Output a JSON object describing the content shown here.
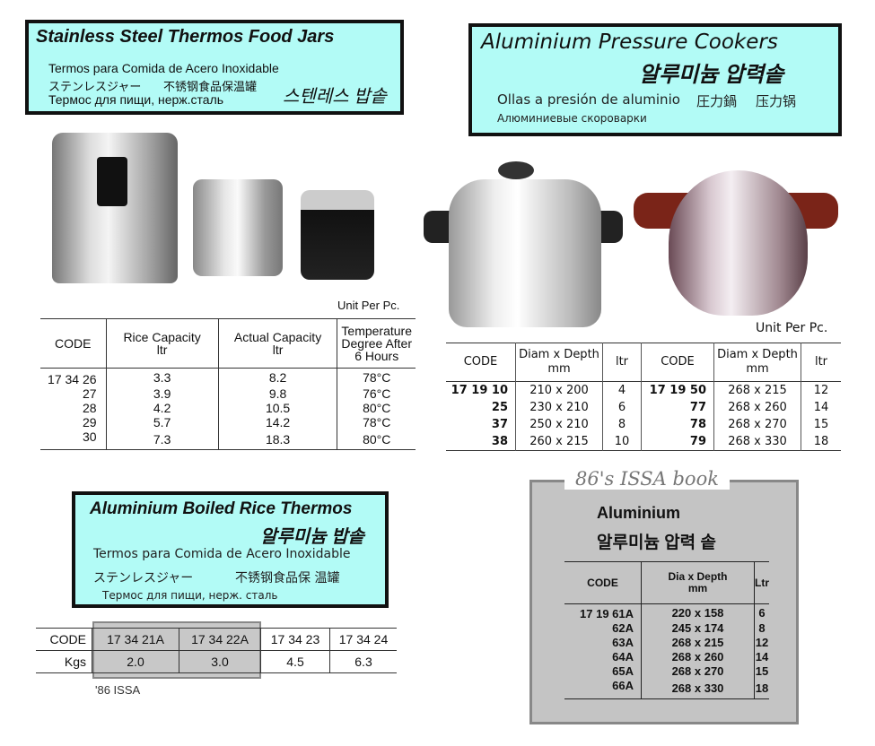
{
  "thermos_jars": {
    "title": "Stainless Steel Thermos Food Jars",
    "spanish": "Termos para Comida de Acero Inoxidable",
    "japanese": "ステンレスジャー",
    "chinese": "不锈钢食品保温罐",
    "russian": "Термос для пищи, нерж.сталь",
    "korean": "스텐레스 밥솥",
    "unit_note": "Unit Per Pc.",
    "headers": [
      "CODE",
      "Rice Capacity ltr",
      "Actual Capacity ltr",
      "Temperature Degree After 6 Hours"
    ],
    "rows": [
      [
        "17 34 26",
        "3.3",
        "8.2",
        "78°C"
      ],
      [
        "27",
        "3.9",
        "9.8",
        "76°C"
      ],
      [
        "28",
        "4.2",
        "10.5",
        "80°C"
      ],
      [
        "29",
        "5.7",
        "14.2",
        "78°C"
      ],
      [
        "30",
        "7.3",
        "18.3",
        "80°C"
      ]
    ]
  },
  "pressure_cookers": {
    "title": "Aluminium Pressure Cookers",
    "korean": "알루미늄 압력솥",
    "spanish": "Ollas a presión de aluminio",
    "japanese": "圧力鍋",
    "chinese": "压力锅",
    "russian": "Алюминиевые скороварки",
    "unit_note": "Unit Per Pc.",
    "headers": [
      "CODE",
      "Diam x Depth mm",
      "ltr",
      "CODE",
      "Diam x Depth mm",
      "ltr"
    ],
    "rows": [
      [
        "17 19 10",
        "210 x 200",
        "4",
        "17 19 50",
        "268 x 215",
        "12"
      ],
      [
        "25",
        "230 x 210",
        "6",
        "77",
        "268 x 260",
        "14"
      ],
      [
        "37",
        "250 x 210",
        "8",
        "78",
        "268 x 270",
        "15"
      ],
      [
        "38",
        "260 x 215",
        "10",
        "79",
        "268 x 330",
        "18"
      ]
    ]
  },
  "rice_thermos": {
    "title": "Aluminium Boiled Rice Thermos",
    "korean": "알루미늄 밥솥",
    "spanish": "Termos para Comida de Acero Inoxidable",
    "japanese": "ステンレスジャー",
    "chinese": "不锈钢食品保 温罐",
    "russian": "Термос для пищи, нерж. сталь",
    "row_labels": [
      "CODE",
      "Kgs"
    ],
    "codes": [
      "17 34 21A",
      "17 34 22A",
      "17 34 23",
      "17 34 24"
    ],
    "kgs": [
      "2.0",
      "3.0",
      "4.5",
      "6.3"
    ],
    "note": "'86 ISSA"
  },
  "issa_book": {
    "banner": "86's ISSA book",
    "title": "Aluminium",
    "korean": "알루미늄 압력 솥",
    "headers": [
      "CODE",
      "Dia x Depth mm",
      "Ltr"
    ],
    "rows": [
      [
        "17 19 61A",
        "220 x 158",
        "6"
      ],
      [
        "62A",
        "245 x 174",
        "8"
      ],
      [
        "63A",
        "268 x 215",
        "12"
      ],
      [
        "64A",
        "268 x 260",
        "14"
      ],
      [
        "65A",
        "268 x 270",
        "15"
      ],
      [
        "66A",
        "268 x 330",
        "18"
      ]
    ]
  }
}
